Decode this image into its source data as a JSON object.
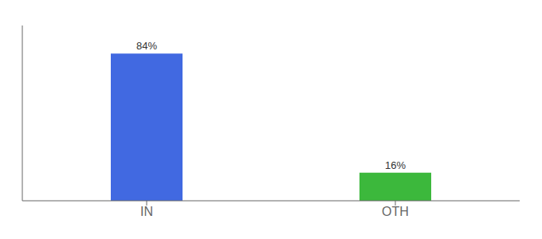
{
  "chart_data": {
    "type": "bar",
    "categories": [
      "IN",
      "OTH"
    ],
    "values": [
      84,
      16
    ],
    "colors": [
      "#4169e1",
      "#3cb83c"
    ],
    "value_labels": [
      "84%",
      "16%"
    ],
    "data_labels": true,
    "ylim": [
      0,
      100
    ],
    "tick_labels": "x"
  }
}
